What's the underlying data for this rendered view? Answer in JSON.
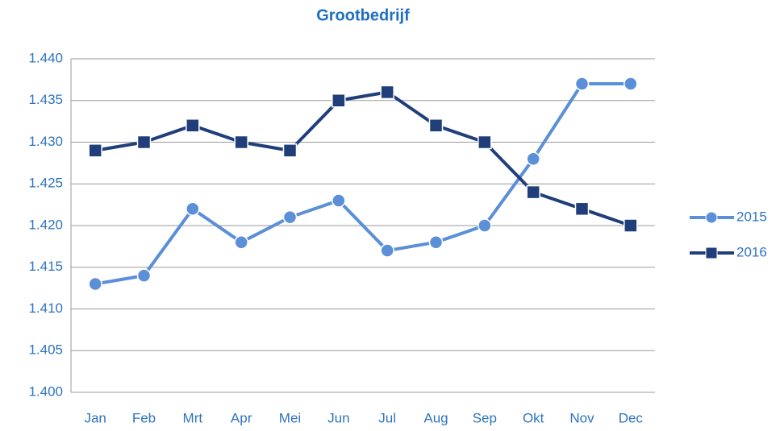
{
  "chart_data": {
    "type": "line",
    "title": "Grootbedrijf",
    "categories": [
      "Jan",
      "Feb",
      "Mrt",
      "Apr",
      "Mei",
      "Jun",
      "Jul",
      "Aug",
      "Sep",
      "Okt",
      "Nov",
      "Dec"
    ],
    "series": [
      {
        "name": "2015",
        "color": "#5b8fd8",
        "marker": "circle",
        "values": [
          1413,
          1414,
          1422,
          1418,
          1421,
          1423,
          1417,
          1418,
          1420,
          1428,
          1437,
          1437
        ]
      },
      {
        "name": "2016",
        "color": "#203f7a",
        "marker": "square",
        "values": [
          1429,
          1430,
          1432,
          1430,
          1429,
          1435,
          1436,
          1432,
          1430,
          1424,
          1422,
          1420
        ]
      }
    ],
    "ylim": [
      1400,
      1440
    ],
    "yticks": [
      {
        "value": 1400,
        "label": "1.400"
      },
      {
        "value": 1405,
        "label": "1.405"
      },
      {
        "value": 1410,
        "label": "1.410"
      },
      {
        "value": 1415,
        "label": "1.415"
      },
      {
        "value": 1420,
        "label": "1.420"
      },
      {
        "value": 1425,
        "label": "1.425"
      },
      {
        "value": 1430,
        "label": "1.430"
      },
      {
        "value": 1435,
        "label": "1.435"
      },
      {
        "value": 1440,
        "label": "1.440"
      }
    ],
    "grid": true,
    "legend": "right"
  }
}
